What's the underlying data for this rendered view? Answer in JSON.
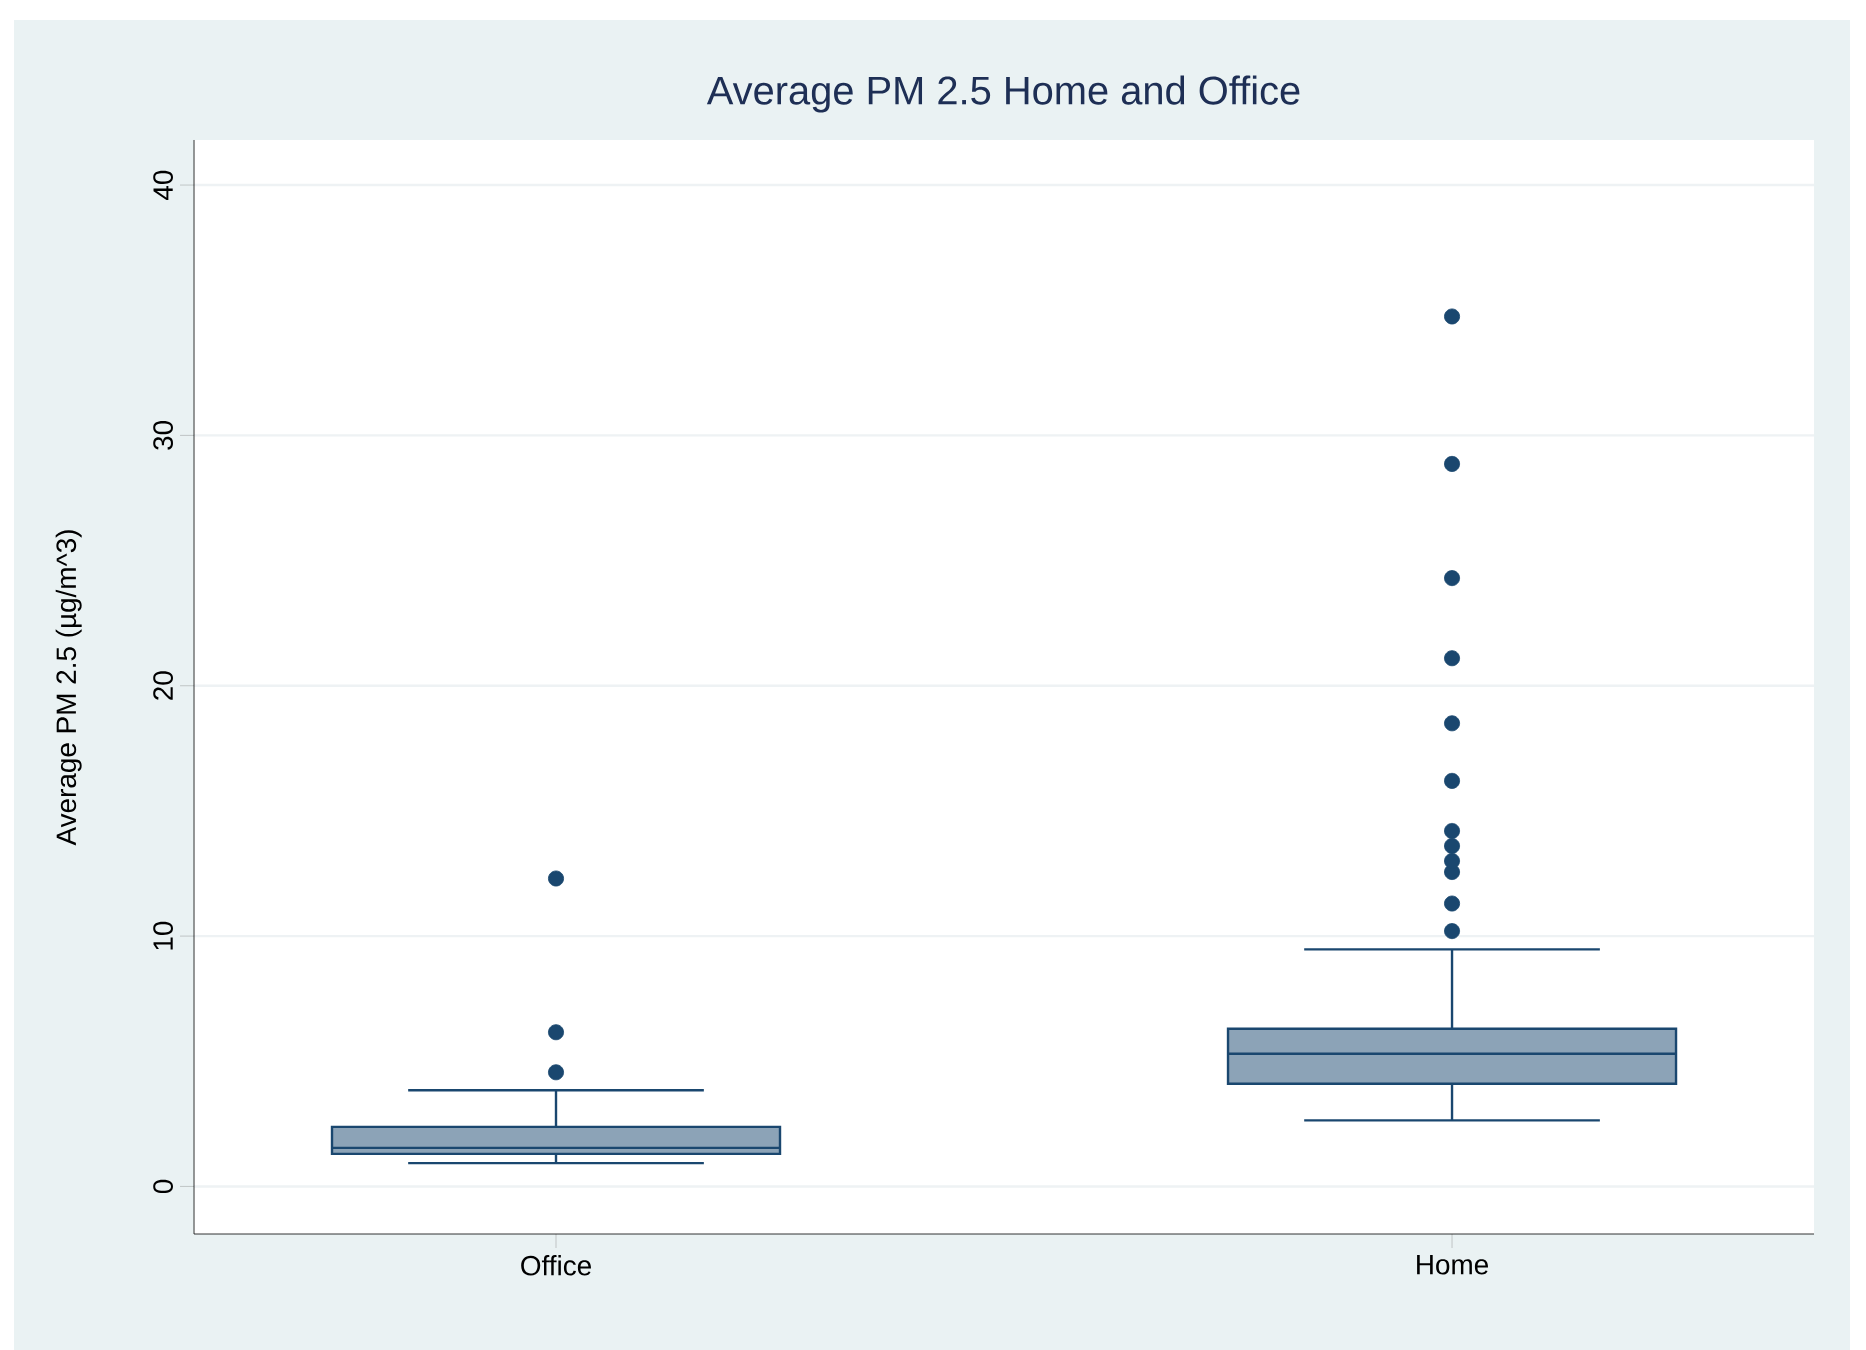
{
  "chart_data": {
    "type": "box",
    "title": "Average PM 2.5 Home and Office",
    "ylabel": "Average PM 2.5 (µg/m^3)",
    "categories": [
      "Office",
      "Home"
    ],
    "series": [
      {
        "color": "#1a476f",
        "boxes": [
          {
            "low": 0.93,
            "q1": 1.3,
            "median": 1.54,
            "q3": 2.38,
            "high": 3.84,
            "outliers": [
              4.56,
              6.16,
              12.3
            ]
          },
          {
            "low": 2.64,
            "q1": 4.1,
            "median": 5.3,
            "q3": 6.3,
            "high": 9.47,
            "outliers": [
              10.2,
              11.3,
              12.56,
              13.0,
              13.6,
              14.2,
              16.2,
              18.5,
              21.1,
              24.3,
              28.86,
              34.75
            ]
          }
        ]
      }
    ],
    "ylim": [
      -1.9,
      41.8
    ],
    "yticks": [
      0,
      10,
      20,
      30,
      40
    ],
    "grid": "y"
  }
}
